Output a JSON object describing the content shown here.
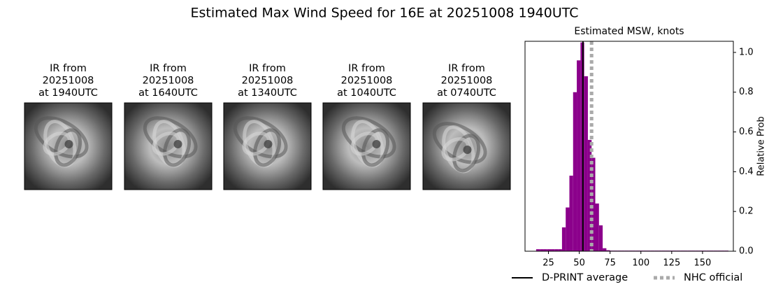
{
  "header": {
    "title": "Estimated Max Wind Speed for 16E at 20251008 1940UTC"
  },
  "panels": [
    {
      "lines": [
        "IR from",
        "20251008",
        "at 1940UTC"
      ]
    },
    {
      "lines": [
        "IR from",
        "20251008",
        "at 1640UTC"
      ]
    },
    {
      "lines": [
        "IR from",
        "20251008",
        "at 1340UTC"
      ]
    },
    {
      "lines": [
        "IR from",
        "20251008",
        "at 1040UTC"
      ]
    },
    {
      "lines": [
        "IR from",
        "20251008",
        "at 0740UTC"
      ]
    }
  ],
  "chart_data": {
    "type": "histogram",
    "title": "Estimated MSW, knots",
    "ylabel": "Relative Prob",
    "color": "#8b008b",
    "bins": [
      15,
      18,
      21,
      24,
      27,
      30,
      33,
      36,
      39,
      42,
      45,
      48,
      51,
      54,
      57,
      60,
      63,
      66,
      69,
      72,
      75,
      78,
      81,
      84,
      87,
      90,
      93,
      96,
      99,
      102,
      105,
      108,
      111,
      114,
      117,
      120,
      123,
      126,
      129,
      132,
      135,
      138,
      141,
      144,
      147,
      150,
      153,
      156,
      159,
      162,
      165,
      168,
      171
    ],
    "values": [
      0.01,
      0.01,
      0.01,
      0.01,
      0.01,
      0.01,
      0.01,
      0.12,
      0.22,
      0.38,
      0.8,
      0.96,
      1.05,
      0.88,
      0.56,
      0.47,
      0.24,
      0.13,
      0.015,
      0.005,
      0.003,
      0.003,
      0.003,
      0.003,
      0.003,
      0.003,
      0.003,
      0.003,
      0.003,
      0.003,
      0.003,
      0.003,
      0.003,
      0.003,
      0.003,
      0.003,
      0.003,
      0.003,
      0.003,
      0.003,
      0.003,
      0.003,
      0.003,
      0.003,
      0.003,
      0.003,
      0.003,
      0.003,
      0.003,
      0.003,
      0.003,
      0.003
    ],
    "xlim": [
      6,
      175
    ],
    "xticks": [
      25,
      50,
      75,
      100,
      125,
      150
    ],
    "ylim": [
      0,
      1.056
    ],
    "yticks": [
      {
        "value": 0,
        "label": "0.0"
      },
      0.2,
      0.4,
      0.6,
      0.8,
      {
        "value": 1,
        "label": "1.0"
      }
    ],
    "lines": [
      {
        "name": "D-PRINT average",
        "x": 53,
        "color": "#000000",
        "style": "solid"
      },
      {
        "name": "NHC official",
        "x": 60,
        "color": "#aaaaaa",
        "style": "dotted"
      }
    ],
    "legend": "below"
  }
}
